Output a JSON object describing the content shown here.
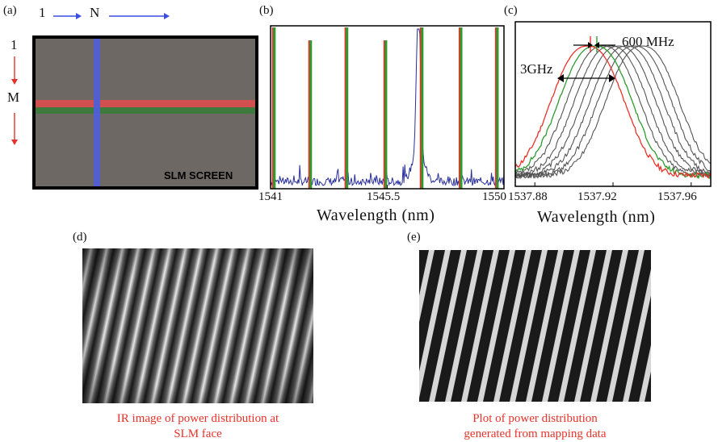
{
  "panels": {
    "a": {
      "label": "(a)",
      "top_start": "1",
      "top_end": "N",
      "left_start": "1",
      "left_end": "M",
      "screen_label": "SLM SCREEN",
      "colors": {
        "screen": "#6e6864",
        "row1": "#d0504f",
        "row2": "#3e7a3e",
        "column": "#4f5fd6"
      }
    },
    "b": {
      "label": "(b)",
      "xlabel": "Wavelength (nm)",
      "xticks": [
        "1541",
        "1545.5",
        "1550"
      ]
    },
    "c": {
      "label": "(c)",
      "xlabel": "Wavelength (nm)",
      "xticks": [
        "1537.88",
        "1537.92",
        "1537.96"
      ],
      "annotation_narrow": "600 MHz",
      "annotation_wide": "3GHz"
    },
    "d": {
      "label": "(d)",
      "caption_line1": "IR image of power distribution at",
      "caption_line2": "SLM face"
    },
    "e": {
      "label": "(e)",
      "caption_line1": "Plot of power distribution",
      "caption_line2": "generated from mapping data"
    }
  },
  "chart_data": [
    {
      "type": "line",
      "panel": "b",
      "xlabel": "Wavelength (nm)",
      "xlim": [
        1541,
        1550
      ],
      "xticks": [
        1541,
        1545.5,
        1550
      ],
      "series": [
        {
          "color": "#e8322a",
          "peaks_x": [
            1541.1,
            1542.5,
            1543.9,
            1545.4,
            1546.8,
            1548.3,
            1549.7
          ]
        },
        {
          "color": "#2f9a2f",
          "peaks_x": [
            1541.15,
            1542.55,
            1543.95,
            1545.45,
            1546.85,
            1548.35,
            1549.75
          ]
        },
        {
          "color": "#2a2f9a",
          "peak_x": 1546.7
        }
      ]
    },
    {
      "type": "line",
      "panel": "c",
      "xlabel": "Wavelength (nm)",
      "xlim": [
        1537.87,
        1537.97
      ],
      "xticks": [
        1537.88,
        1537.92,
        1537.96
      ],
      "series": [
        {
          "color": "#e8322a",
          "center": 1537.907
        },
        {
          "color": "#2f9a2f",
          "center": 1537.911
        },
        {
          "color": "#555555",
          "center": 1537.915
        },
        {
          "color": "#555555",
          "center": 1537.919
        },
        {
          "color": "#555555",
          "center": 1537.923
        },
        {
          "color": "#555555",
          "center": 1537.927
        },
        {
          "color": "#555555",
          "center": 1537.931
        },
        {
          "color": "#555555",
          "center": 1537.935
        }
      ]
    }
  ]
}
